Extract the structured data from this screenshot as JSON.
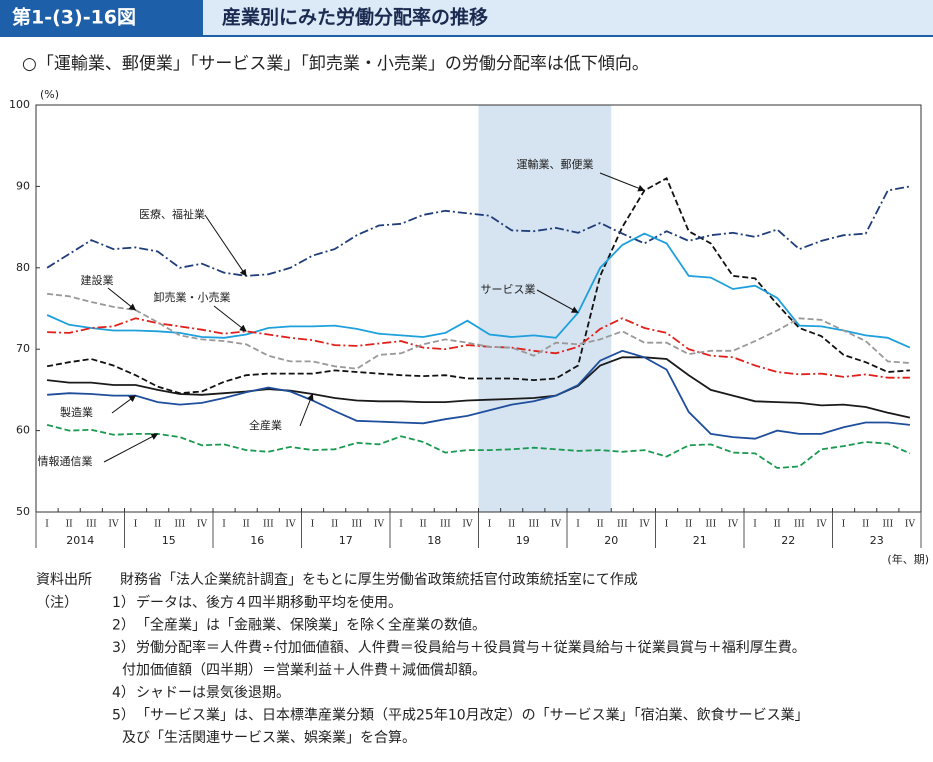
{
  "header": {
    "figure_number": "第1-(3)-16図",
    "title": "産業別にみた労働分配率の推移"
  },
  "subtitle": "○「運輸業、郵便業」「サービス業」「卸売業・小売業」の労働分配率は低下傾向。",
  "chart_data": {
    "type": "line",
    "y_unit": "(%)",
    "x_unit": "(年、期)",
    "categories": [
      "I",
      "II",
      "III",
      "IV",
      "I",
      "II",
      "III",
      "IV",
      "I",
      "II",
      "III",
      "IV",
      "I",
      "II",
      "III",
      "IV",
      "I",
      "II",
      "III",
      "IV",
      "I",
      "II",
      "III",
      "IV",
      "I",
      "II",
      "III",
      "IV",
      "I",
      "II",
      "III",
      "IV",
      "I",
      "II",
      "III",
      "IV",
      "I",
      "II",
      "III",
      "IV"
    ],
    "year_labels": [
      "2014",
      "15",
      "16",
      "17",
      "18",
      "19",
      "20",
      "21",
      "22",
      "23"
    ],
    "shaded_categories": [
      20,
      25
    ],
    "ylim": [
      50,
      100
    ],
    "yticks": [
      50,
      60,
      70,
      80,
      90,
      100
    ],
    "grid": false,
    "series": [
      {
        "name": "全産業",
        "color": "#1a1a1a",
        "dash": "solid",
        "values": [
          66.2,
          65.9,
          65.9,
          65.6,
          65.6,
          65,
          64.5,
          64.4,
          64.6,
          64.8,
          65.1,
          64.9,
          64.5,
          64,
          63.7,
          63.6,
          63.6,
          63.5,
          63.5,
          63.7,
          63.8,
          63.9,
          64,
          64.3,
          65.5,
          68,
          69,
          69,
          68.8,
          66.8,
          65,
          64.3,
          63.6,
          63.5,
          63.4,
          63.1,
          63.2,
          62.9,
          62.2,
          61.6
        ]
      },
      {
        "name": "製造業",
        "color": "#1f4e9c",
        "dash": "solid",
        "values": [
          64.4,
          64.6,
          64.5,
          64.3,
          64.3,
          63.5,
          63.2,
          63.4,
          64,
          64.7,
          65.3,
          64.8,
          63.7,
          62.4,
          61.2,
          61.1,
          61,
          60.9,
          61.4,
          61.8,
          62.5,
          63.2,
          63.6,
          64.3,
          65.6,
          68.6,
          69.8,
          69,
          67.5,
          62.3,
          59.6,
          59.2,
          59,
          60,
          59.6,
          59.6,
          60.4,
          61,
          61,
          60.7
        ]
      },
      {
        "name": "運輸業、郵便業",
        "color": "#111111",
        "dash": "dashed",
        "values": [
          67.9,
          68.4,
          68.8,
          68,
          66.8,
          65.4,
          64.6,
          64.8,
          66,
          66.8,
          67,
          67,
          67,
          67.4,
          67.2,
          67,
          66.8,
          66.7,
          66.8,
          66.4,
          66.4,
          66.4,
          66.2,
          66.4,
          68,
          79,
          85,
          89.5,
          91,
          84.5,
          83,
          79,
          78.7,
          75.5,
          72.6,
          71.6,
          69.3,
          68.4,
          67.2,
          67.4
        ]
      },
      {
        "name": "医療、福祉業",
        "color": "#1f3d7a",
        "dash": "dashdot",
        "values": [
          80,
          81.7,
          83.4,
          82.3,
          82.5,
          82,
          80,
          80.5,
          79.4,
          79,
          79.2,
          80,
          81.5,
          82.3,
          84,
          85.2,
          85.4,
          86.5,
          87,
          86.7,
          86.4,
          84.6,
          84.5,
          84.9,
          84.3,
          85.5,
          84.2,
          83,
          84.5,
          83.3,
          84,
          84.3,
          83.8,
          84.7,
          82.3,
          83.3,
          84,
          84.2,
          89.5,
          90
        ]
      },
      {
        "name": "サービス業",
        "color": "#1ea0dc",
        "dash": "solid",
        "values": [
          74.2,
          73,
          72.6,
          72.3,
          72.3,
          72.2,
          72,
          71.5,
          71.4,
          71.8,
          72.6,
          72.8,
          72.8,
          72.9,
          72.5,
          71.9,
          71.7,
          71.5,
          72,
          73.5,
          71.8,
          71.5,
          71.7,
          71.4,
          74.5,
          80,
          82.8,
          84.2,
          83,
          79,
          78.8,
          77.4,
          77.8,
          76.3,
          72.9,
          72.8,
          72.3,
          71.7,
          71.4,
          70.2
        ]
      },
      {
        "name": "卸売業・小売業",
        "color": "#e0201b",
        "dash": "dashdot",
        "values": [
          72.1,
          72,
          72.6,
          72.8,
          73.8,
          73.2,
          72.8,
          72.4,
          71.9,
          72.2,
          71.8,
          71.4,
          71.1,
          70.5,
          70.4,
          70.7,
          71,
          70.2,
          70,
          70.5,
          70.3,
          70.2,
          69.8,
          69.5,
          70.3,
          72.5,
          73.8,
          72.6,
          72,
          70,
          69.2,
          69,
          68,
          67.2,
          66.9,
          67,
          66.6,
          66.9,
          66.5,
          66.5
        ]
      },
      {
        "name": "建設業",
        "color": "#999999",
        "dash": "dashed",
        "values": [
          76.8,
          76.5,
          75.8,
          75.2,
          74.8,
          73.3,
          71.7,
          71.2,
          71,
          70.6,
          69.2,
          68.5,
          68.5,
          67.9,
          67.6,
          69.3,
          69.5,
          70.6,
          71.2,
          70.8,
          70.3,
          70.2,
          69.2,
          70.8,
          70.6,
          71.2,
          72.2,
          70.8,
          70.8,
          69.4,
          69.8,
          69.8,
          71,
          72.3,
          73.8,
          73.6,
          72.3,
          71,
          68.5,
          68.3
        ]
      },
      {
        "name": "情報通信業",
        "color": "#1a9a50",
        "dash": "dashed",
        "values": [
          60.7,
          60,
          60.1,
          59.5,
          59.6,
          59.6,
          59.2,
          58.2,
          58.3,
          57.6,
          57.4,
          58,
          57.6,
          57.7,
          58.5,
          58.3,
          59.3,
          58.6,
          57.3,
          57.6,
          57.6,
          57.7,
          57.9,
          57.7,
          57.5,
          57.6,
          57.4,
          57.6,
          56.8,
          58.2,
          58.3,
          57.3,
          57.2,
          55.4,
          55.6,
          57.7,
          58.1,
          58.6,
          58.4,
          57.2
        ]
      }
    ]
  },
  "notes": {
    "source_label": "資料出所",
    "source": "財務省「法人企業統計調査」をもとに厚生労働省政策統括官付政策統括室にて作成",
    "label": "（注）",
    "items": [
      {
        "num": "1）",
        "lines": [
          "データは、後方４四半期移動平均を使用。"
        ]
      },
      {
        "num": "2）",
        "lines": [
          "「全産業」は「金融業、保険業」を除く全産業の数値。"
        ]
      },
      {
        "num": "3）",
        "lines": [
          "労働分配率＝人件費÷付加価値額、人件費＝役員給与＋役員賞与＋従業員給与＋従業員賞与＋福利厚生費。",
          "付加価値額（四半期）＝営業利益＋人件費＋減価償却額。"
        ]
      },
      {
        "num": "4）",
        "lines": [
          "シャドーは景気後退期。"
        ]
      },
      {
        "num": "5）",
        "lines": [
          "「サービス業」は、日本標準産業分類（平成25年10月改定）の「サービス業」「宿泊業、飲食サービス業」",
          "及び「生活関連サービス業、娯楽業」を合算。"
        ]
      }
    ]
  }
}
